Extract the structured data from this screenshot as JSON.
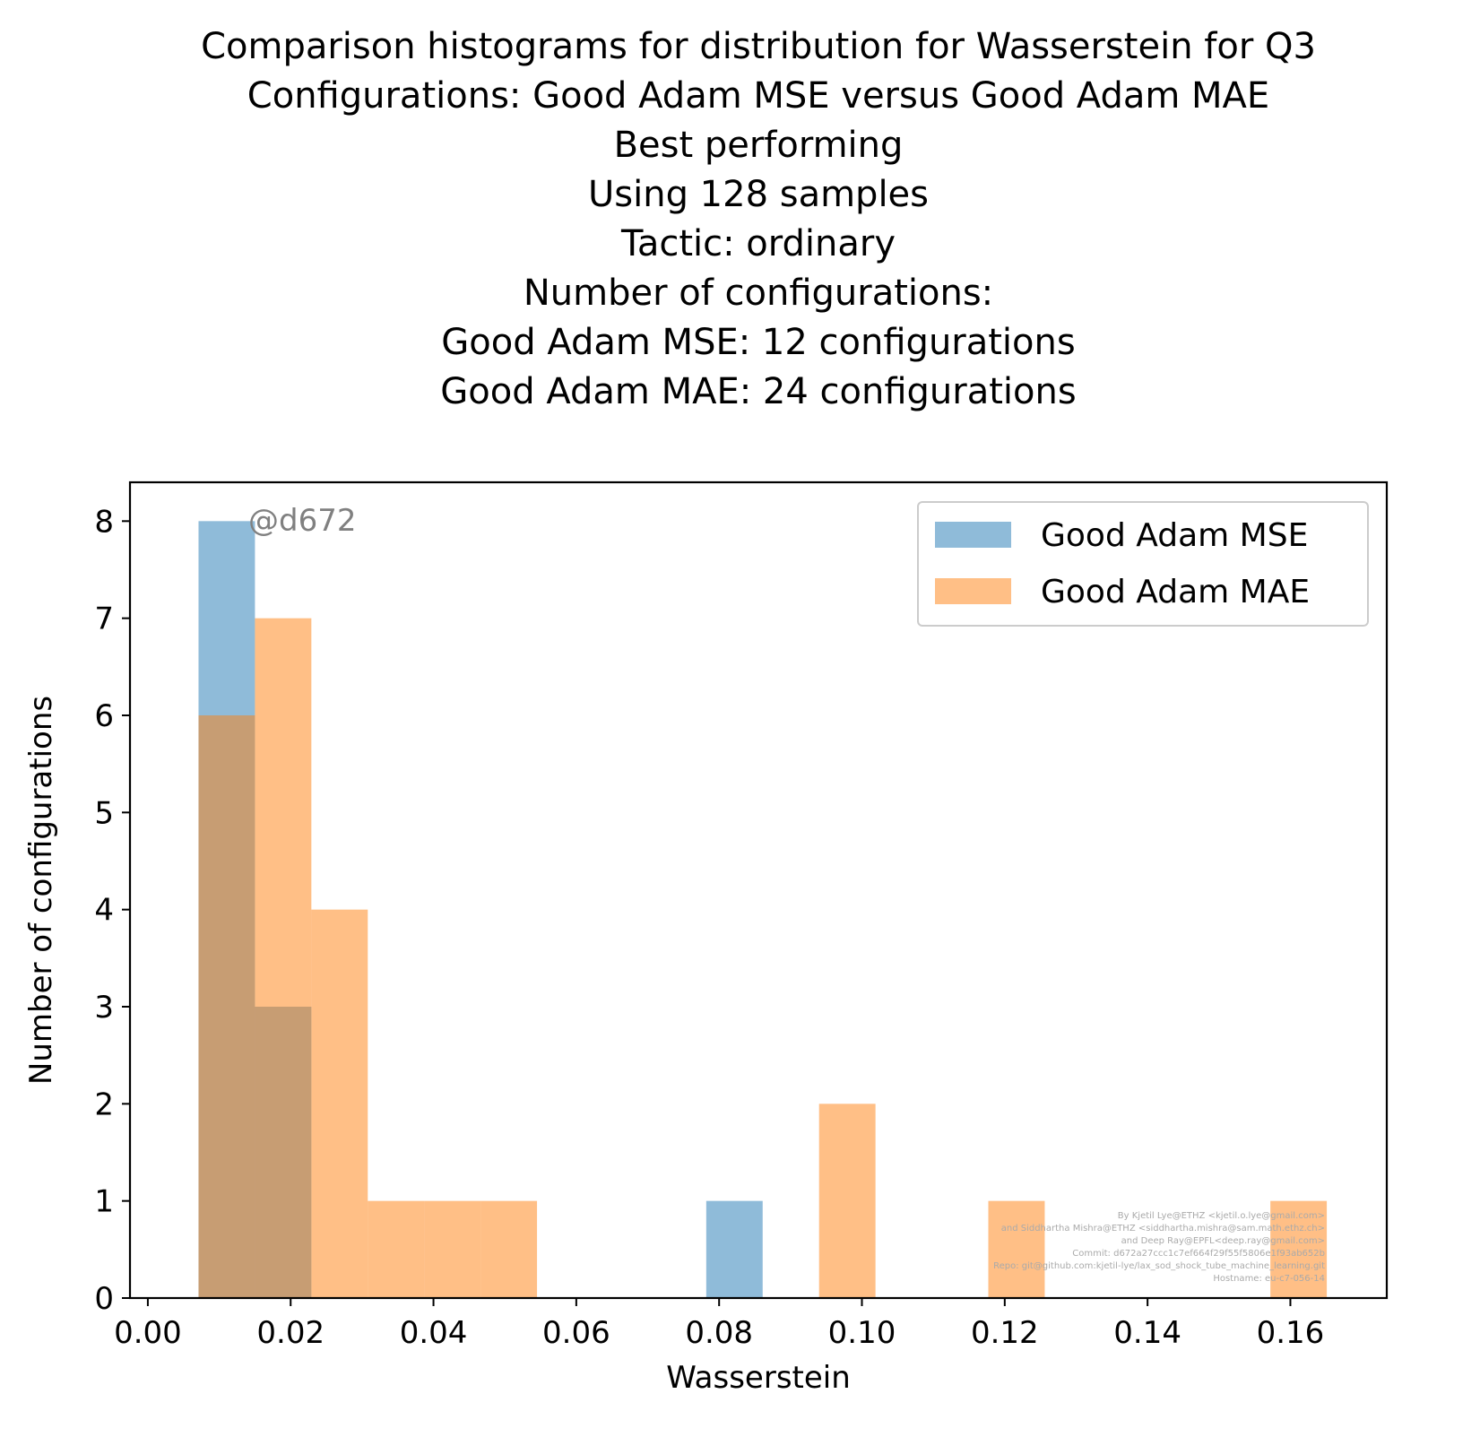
{
  "chart_data": {
    "type": "bar",
    "title_lines": [
      "Comparison histograms for distribution for Wasserstein for Q3",
      "Configurations: Good Adam MSE versus Good Adam MAE",
      "Best performing",
      "Using 128 samples",
      "Tactic: ordinary",
      "Number of configurations:",
      "Good Adam MSE: 12 configurations",
      "Good Adam MAE: 24 configurations"
    ],
    "xlabel": "Wasserstein",
    "ylabel": "Number of configurations",
    "xlim": [
      -0.0025,
      0.1735
    ],
    "ylim": [
      0,
      8.4
    ],
    "xticks": [
      0.0,
      0.02,
      0.04,
      0.06,
      0.08,
      0.1,
      0.12,
      0.14,
      0.16
    ],
    "xtick_labels": [
      "0.00",
      "0.02",
      "0.04",
      "0.06",
      "0.08",
      "0.10",
      "0.12",
      "0.14",
      "0.16"
    ],
    "yticks": [
      0,
      1,
      2,
      3,
      4,
      5,
      6,
      7,
      8
    ],
    "ytick_labels": [
      "0",
      "1",
      "2",
      "3",
      "4",
      "5",
      "6",
      "7",
      "8"
    ],
    "bin_edges": [
      0.0071,
      0.015,
      0.0229,
      0.0308,
      0.0387,
      0.0466,
      0.0545,
      0.0624,
      0.0703,
      0.0782,
      0.0861,
      0.094,
      0.1019,
      0.1098,
      0.1177,
      0.1256,
      0.1335,
      0.1414,
      0.1493,
      0.1572,
      0.1651
    ],
    "series": [
      {
        "name": "Good Adam MSE",
        "color": "#1f77b4",
        "values": [
          8,
          3,
          0,
          0,
          0,
          0,
          0,
          0,
          0,
          1,
          0,
          0,
          0,
          0,
          0,
          0,
          0,
          0,
          0,
          0
        ]
      },
      {
        "name": "Good Adam MAE",
        "color": "#ff7f0e",
        "values": [
          6,
          7,
          4,
          1,
          1,
          1,
          0,
          0,
          0,
          0,
          0,
          2,
          0,
          0,
          1,
          0,
          0,
          0,
          0,
          1
        ]
      }
    ],
    "bar_opacity": 0.5,
    "legend_position": "upper right",
    "grid": false,
    "annotation": "@d672",
    "footer_lines": [
      "By Kjetil Lye@ETHZ <kjetil.o.lye@gmail.com>",
      "and Siddhartha Mishra@ETHZ <siddhartha.mishra@sam.math.ethz.ch>",
      "and Deep Ray@EPFL<deep.ray@gmail.com>",
      "Commit: d672a27ccc1c7ef664f29f55f5806e1f93ab652b",
      "Repo: git@github.com:kjetil-lye/lax_sod_shock_tube_machine_learning.git",
      "Hostname: eu-c7-056-14"
    ]
  }
}
